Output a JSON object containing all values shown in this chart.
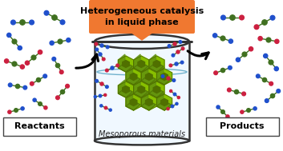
{
  "title": "Heterogeneous catalysis\nin liquid phase",
  "label_reactants": "Reactants",
  "label_products": "Products",
  "label_mesoporous": "Mesoporous materials",
  "orange_color": "#F07830",
  "green_color": "#88C000",
  "green_dark": "#507000",
  "green_mid": "#609010",
  "blue_mol": "#2050CC",
  "red_mol": "#CC2040",
  "bond_col": "#407020",
  "beaker_fill": "#F0F8FF",
  "beaker_edge": "#333333",
  "background_color": "#FFFFFF",
  "figsize": [
    3.53,
    1.89
  ],
  "dpi": 100
}
